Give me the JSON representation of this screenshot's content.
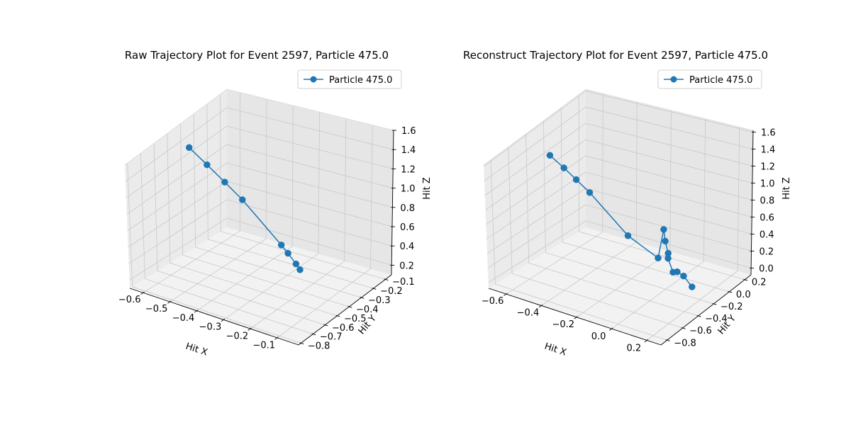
{
  "chart_data": [
    {
      "type": "line3d",
      "title": "Raw Trajectory Plot for Event 2597, Particle 475.0",
      "xlabel": "Hit X",
      "ylabel": "Hit Y",
      "zlabel": "Hit Z",
      "xlim": [
        -0.65,
        -0.02
      ],
      "ylim": [
        -0.82,
        -0.05
      ],
      "zlim": [
        0.1,
        1.6
      ],
      "xticks": [
        -0.6,
        -0.5,
        -0.4,
        -0.3,
        -0.2,
        -0.1
      ],
      "xtick_labels": [
        "−0.6",
        "−0.5",
        "−0.4",
        "−0.3",
        "−0.2",
        "−0.1"
      ],
      "yticks": [
        -0.8,
        -0.7,
        -0.6,
        -0.5,
        -0.4,
        -0.3,
        -0.2,
        -0.1
      ],
      "ytick_labels": [
        "−0.8",
        "−0.7",
        "−0.6",
        "−0.5",
        "−0.4",
        "−0.3",
        "−0.2",
        "−0.1"
      ],
      "zticks": [
        0.2,
        0.4,
        0.6,
        0.8,
        1.0,
        1.2,
        1.4,
        1.6
      ],
      "ztick_labels": [
        "0.2",
        "0.4",
        "0.6",
        "0.8",
        "1.0",
        "1.2",
        "1.4",
        "1.6"
      ],
      "legend": "top-right",
      "grid": true,
      "series": [
        {
          "name": "Particle 475.0",
          "color": "#1f77b4",
          "marker": "circle",
          "x": [
            -0.585,
            -0.52,
            -0.455,
            -0.39,
            -0.245,
            -0.22,
            -0.19,
            -0.175
          ],
          "y": [
            -0.47,
            -0.47,
            -0.47,
            -0.47,
            -0.47,
            -0.47,
            -0.47,
            -0.47
          ],
          "z": [
            1.455,
            1.31,
            1.165,
            1.02,
            0.64,
            0.57,
            0.48,
            0.43
          ]
        }
      ]
    },
    {
      "type": "line3d",
      "title": "Reconstruct Trajectory Plot for Event 2597, Particle 475.0",
      "xlabel": "Hit X",
      "ylabel": "Hit Y",
      "zlabel": "Hit Z",
      "xlim": [
        -0.7,
        0.28
      ],
      "ylim": [
        -0.88,
        0.28
      ],
      "zlim": [
        -0.08,
        1.62
      ],
      "xticks": [
        -0.6,
        -0.4,
        -0.2,
        0.0,
        0.2
      ],
      "xtick_labels": [
        "−0.6",
        "−0.4",
        "−0.2",
        "0.0",
        "0.2"
      ],
      "yticks": [
        -0.8,
        -0.6,
        -0.4,
        -0.2,
        0.0,
        0.2
      ],
      "ytick_labels": [
        "−0.8",
        "−0.6",
        "−0.4",
        "−0.2",
        "0.0",
        "0.2"
      ],
      "zticks": [
        0.0,
        0.2,
        0.4,
        0.6,
        0.8,
        1.0,
        1.2,
        1.4,
        1.6
      ],
      "ztick_labels": [
        "0.0",
        "0.2",
        "0.4",
        "0.6",
        "0.8",
        "1.0",
        "1.2",
        "1.4",
        "1.6"
      ],
      "legend": "top-right",
      "grid": true,
      "series": [
        {
          "name": "Particle 475.0",
          "color": "#1f77b4",
          "marker": "circle",
          "x": [
            -0.591,
            -0.512,
            -0.442,
            -0.366,
            -0.148,
            0.025,
            0.057,
            0.066,
            0.083,
            0.082,
            0.111,
            0.135,
            0.172,
            0.221
          ],
          "y": [
            -0.35,
            -0.35,
            -0.35,
            -0.35,
            -0.35,
            -0.35,
            -0.35,
            -0.35,
            -0.35,
            -0.35,
            -0.35,
            -0.35,
            -0.35,
            -0.35
          ],
          "z": [
            1.357,
            1.24,
            1.13,
            1.01,
            0.598,
            0.427,
            0.798,
            0.66,
            0.521,
            0.459,
            0.307,
            0.327,
            0.298,
            0.197
          ]
        }
      ]
    }
  ]
}
